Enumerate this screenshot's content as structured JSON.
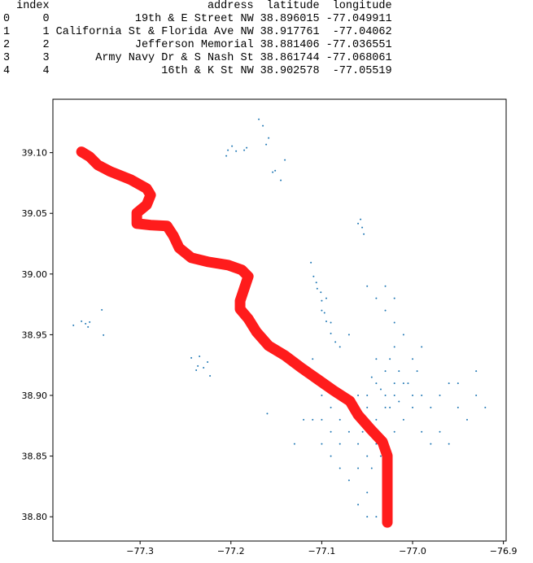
{
  "table": {
    "columns": [
      "index",
      "address",
      "latitude",
      "longitude"
    ],
    "rows": [
      [
        0,
        0,
        "19th & E Street NW",
        38.896015,
        -77.049911
      ],
      [
        1,
        1,
        "California St & Florida Ave NW",
        38.917761,
        -77.04062
      ],
      [
        2,
        2,
        "Jefferson Memorial",
        38.881406,
        -77.036551
      ],
      [
        3,
        3,
        "Army Navy Dr & S Nash St",
        38.861744,
        -77.068061
      ],
      [
        4,
        4,
        "16th & K St NW",
        38.902578,
        -77.05519
      ]
    ]
  },
  "chart_data": {
    "type": "scatter",
    "xlim": [
      -77.396,
      -76.897
    ],
    "ylim": [
      38.78,
      39.144
    ],
    "xticks": [
      {
        "value": -77.3,
        "label": "−77.3"
      },
      {
        "value": -77.2,
        "label": "−77.2"
      },
      {
        "value": -77.1,
        "label": "−77.1"
      },
      {
        "value": -77.0,
        "label": "−77.0"
      },
      {
        "value": -76.9,
        "label": "−76.9"
      }
    ],
    "yticks": [
      {
        "value": 38.8,
        "label": "38.80"
      },
      {
        "value": 38.85,
        "label": "38.85"
      },
      {
        "value": 38.9,
        "label": "38.90"
      },
      {
        "value": 38.95,
        "label": "38.95"
      },
      {
        "value": 39.0,
        "label": "39.00"
      },
      {
        "value": 39.05,
        "label": "39.05"
      },
      {
        "value": 39.1,
        "label": "39.10"
      }
    ],
    "series": [
      {
        "type": "scatter",
        "color": "#1f77b4",
        "x": [
          -77.2033,
          -77.1988,
          -77.1943,
          -77.1854,
          -77.1827,
          -77.2051,
          -77.1693,
          -77.1648,
          -77.1612,
          -77.1585,
          -77.154,
          -77.1513,
          -77.1451,
          -77.1406,
          -77.0573,
          -77.0555,
          -77.0537,
          -77.06,
          -77.3734,
          -77.3645,
          -77.36,
          -77.3555,
          -77.3573,
          -77.3421,
          -77.3403,
          -77.2436,
          -77.2346,
          -77.2364,
          -77.2301,
          -77.2257,
          -77.223,
          -77.2382,
          -77.1119,
          -77.109,
          -77.105,
          -77.1,
          -77.097,
          -77.095,
          -77.101,
          -77.106,
          -77.09,
          -77.085,
          -77.05,
          -77.04,
          -77.03,
          -77.02,
          -77.01,
          -77.0,
          -77.03,
          -77.04,
          -77.02,
          -77.03,
          -77.04,
          -77.05,
          -77.06,
          -77.07,
          -77.08,
          -77.09,
          -77.1,
          -77.11,
          -77.09,
          -77.08,
          -77.07,
          -77.06,
          -77.05,
          -77.04,
          -77.06,
          -77.07,
          -77.08,
          -77.09,
          -77.1,
          -77.06,
          -77.05,
          -77.04,
          -77.05,
          -77.03,
          -77.02,
          -77.01,
          -77.0,
          -76.99,
          -76.98,
          -76.97,
          -76.96,
          -76.95,
          -76.94,
          -76.93,
          -76.92,
          -76.99,
          -76.98,
          -76.97,
          -76.96,
          -77.0,
          -76.99,
          -77.01,
          -77.02,
          -77.03,
          -77.04,
          -77.05,
          -77.03,
          -77.02,
          -77.07,
          -77.08,
          -77.09,
          -77.095,
          -77.1,
          -77.11,
          -77.1,
          -77.12,
          -77.13,
          -77.08,
          -77.055,
          -77.035,
          -77.045,
          -77.025,
          -77.015,
          -77.005,
          -76.995,
          -77.02,
          -77.035,
          -77.045,
          -77.015,
          -77.025,
          -77.16,
          -76.93,
          -76.95
        ],
        "values": [
          39.102,
          39.1054,
          39.1013,
          39.102,
          39.104,
          39.0973,
          39.1275,
          39.1221,
          39.1067,
          39.1121,
          39.0839,
          39.0852,
          39.0772,
          39.094,
          39.045,
          39.0383,
          39.0329,
          39.0416,
          38.9577,
          38.9611,
          38.9591,
          38.9604,
          38.9564,
          38.9705,
          38.9497,
          38.9309,
          38.9322,
          38.9242,
          38.9228,
          38.9275,
          38.9161,
          38.9208,
          39.0094,
          38.998,
          38.988,
          38.978,
          38.968,
          38.961,
          38.985,
          38.993,
          38.951,
          38.944,
          38.9,
          38.91,
          38.9,
          38.9,
          38.91,
          38.9,
          38.92,
          38.93,
          38.94,
          38.89,
          38.88,
          38.89,
          38.9,
          38.89,
          38.9,
          38.89,
          38.88,
          38.88,
          38.87,
          38.86,
          38.87,
          38.86,
          38.85,
          38.86,
          38.84,
          38.83,
          38.84,
          38.85,
          38.86,
          38.81,
          38.82,
          38.8,
          38.8,
          38.83,
          38.87,
          38.88,
          38.89,
          38.9,
          38.89,
          38.9,
          38.91,
          38.89,
          38.88,
          38.9,
          38.89,
          38.87,
          38.86,
          38.87,
          38.86,
          38.93,
          38.94,
          38.95,
          38.96,
          38.97,
          38.98,
          38.99,
          38.99,
          38.98,
          38.95,
          38.94,
          38.96,
          38.98,
          38.97,
          38.93,
          38.9,
          38.88,
          38.86,
          38.88,
          38.87,
          38.85,
          38.84,
          38.89,
          38.92,
          38.91,
          38.92,
          38.91,
          38.905,
          38.915,
          38.895,
          38.93,
          38.885,
          38.92,
          38.91
        ]
      },
      {
        "type": "line",
        "color": "#ff1c1c",
        "x": [
          -77.3645,
          -77.3555,
          -77.3466,
          -77.3331,
          -77.3107,
          -77.2928,
          -77.2884,
          -77.2928,
          -77.3036,
          -77.3036,
          -77.2884,
          -77.2704,
          -77.2633,
          -77.257,
          -77.2436,
          -77.2257,
          -77.2033,
          -77.1881,
          -77.1809,
          -77.1854,
          -77.1899,
          -77.1899,
          -77.1809,
          -77.1719,
          -77.1585,
          -77.1406,
          -77.1227,
          -77.1048,
          -77.0869,
          -77.069,
          -77.06,
          -77.0466,
          -77.0331,
          -77.0278,
          -77.0278,
          -77.0278
        ],
        "values": [
          39.1007,
          39.0966,
          39.0899,
          39.0846,
          39.0779,
          39.0705,
          39.0651,
          39.057,
          39.0503,
          39.0416,
          39.0403,
          39.0396,
          39.0315,
          39.0215,
          39.0134,
          39.0101,
          39.0074,
          39.0034,
          38.998,
          38.9879,
          38.9779,
          38.9711,
          38.9631,
          38.9523,
          38.9409,
          38.9329,
          38.9228,
          38.9134,
          38.904,
          38.8953,
          38.8839,
          38.8725,
          38.8617,
          38.8503,
          38.8235,
          38.7953
        ]
      }
    ]
  }
}
